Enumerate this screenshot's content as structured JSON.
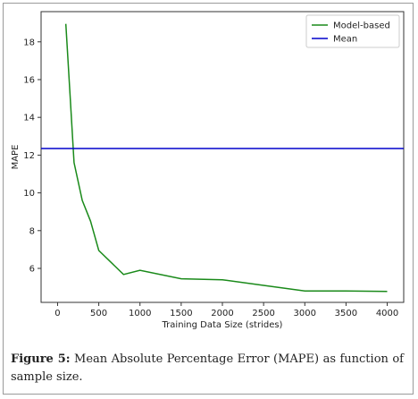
{
  "caption": {
    "label": "Figure 5:",
    "text": "Mean Absolute Percentage Error (MAPE) as function of sample size."
  },
  "chart_data": {
    "type": "line",
    "title": "",
    "xlabel": "Training Data Size (strides)",
    "ylabel": "MAPE",
    "xlim": [
      -200,
      4200
    ],
    "ylim": [
      4.2,
      19.6
    ],
    "xticks": [
      0,
      500,
      1000,
      1500,
      2000,
      2500,
      3000,
      3500,
      4000
    ],
    "yticks": [
      6,
      8,
      10,
      12,
      14,
      16,
      18
    ],
    "legend_position": "top-right",
    "grid": false,
    "series": [
      {
        "name": "Model-based",
        "color": "#1a8a1a",
        "x": [
          100,
          150,
          200,
          300,
          400,
          500,
          800,
          1000,
          1500,
          2000,
          2500,
          3000,
          3500,
          4000
        ],
        "y": [
          18.95,
          15.3,
          11.6,
          9.6,
          8.5,
          6.95,
          5.68,
          5.9,
          5.45,
          5.4,
          5.1,
          4.8,
          4.8,
          4.78
        ]
      },
      {
        "name": "Mean",
        "color": "#0000cc",
        "constant_y": 12.35
      }
    ]
  }
}
